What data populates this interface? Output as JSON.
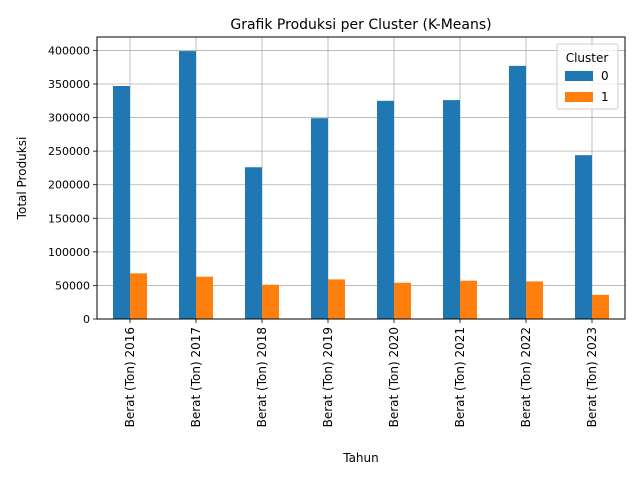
{
  "chart_data": {
    "type": "bar",
    "title": "Grafik Produksi per Cluster (K-Means)",
    "xlabel": "Tahun",
    "ylabel": "Total Produksi",
    "categories": [
      "Berat (Ton) 2016",
      "Berat (Ton) 2017",
      "Berat (Ton) 2018",
      "Berat (Ton) 2019",
      "Berat (Ton) 2020",
      "Berat (Ton) 2021",
      "Berat (Ton) 2022",
      "Berat (Ton) 2023"
    ],
    "series": [
      {
        "name": "0",
        "color": "#1f77b4",
        "values": [
          347000,
          399000,
          226000,
          299000,
          325000,
          326000,
          377000,
          244000
        ]
      },
      {
        "name": "1",
        "color": "#ff7f0e",
        "values": [
          68000,
          63000,
          51000,
          59000,
          54000,
          57000,
          56000,
          36000
        ]
      }
    ],
    "ylim": [
      0,
      420000
    ],
    "yticks": [
      0,
      50000,
      100000,
      150000,
      200000,
      250000,
      300000,
      350000,
      400000
    ],
    "grid": true,
    "legend": {
      "title": "Cluster",
      "placement": "top-right"
    }
  }
}
